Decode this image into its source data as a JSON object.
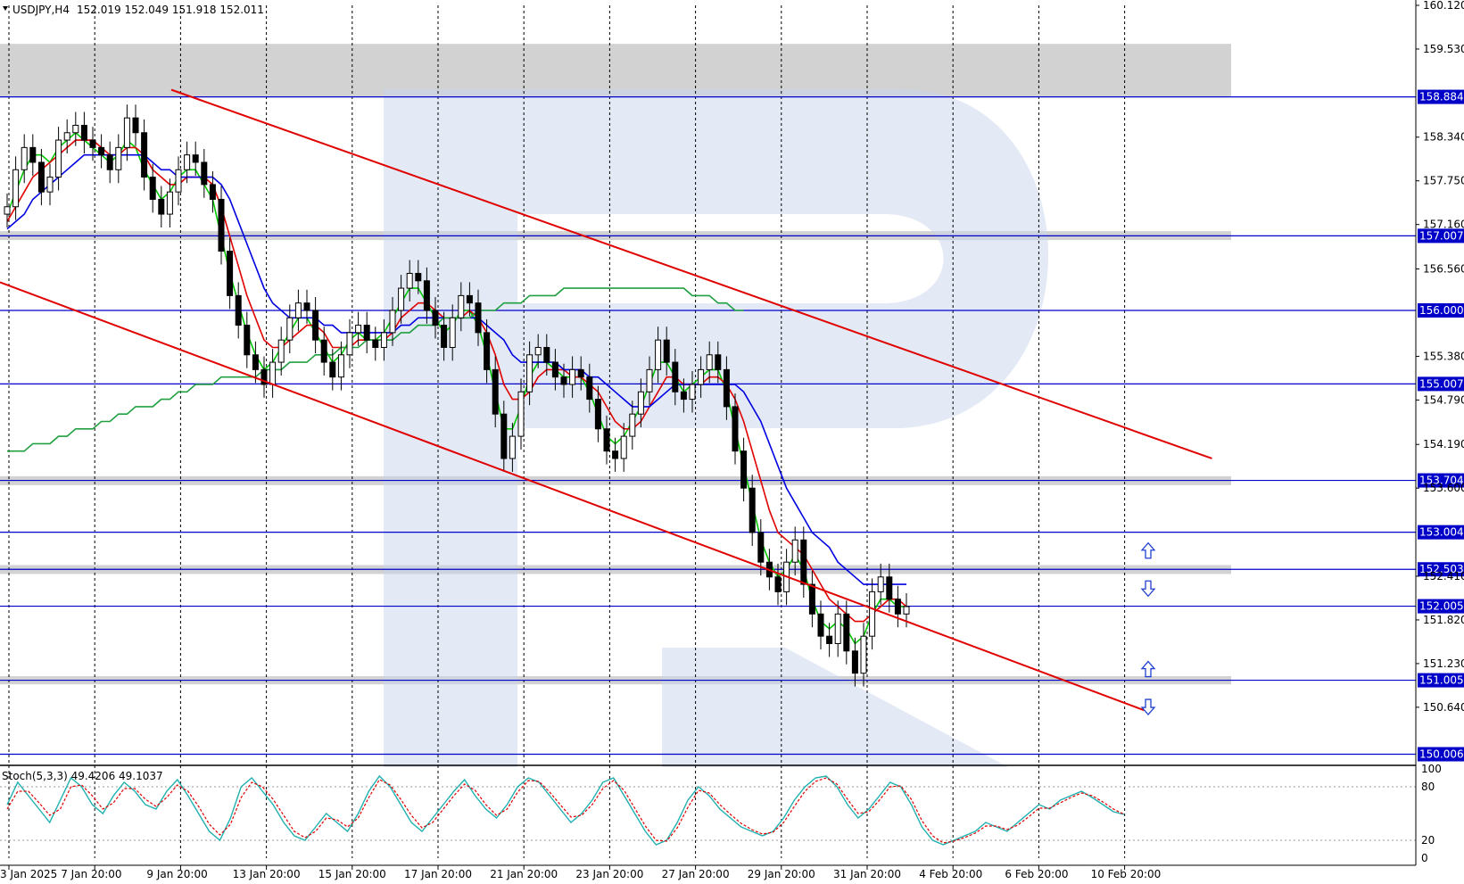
{
  "header": {
    "symbol": "USDJPY,H4",
    "ohlc": "152.019 152.049 151.918 152.011"
  },
  "oscillator": {
    "label": "Stoch(5,3,3) 49.4206 49.1037",
    "levels": [
      "100",
      "80",
      "20",
      "0"
    ]
  },
  "colors": {
    "channel": "#e00000",
    "level_line": "#0000c8",
    "zone_fill": "#d0d0d0",
    "ma_fast": "#00c800",
    "ma_mid": "#e00000",
    "ma_slow": "#0000e0",
    "ma_long": "#20a040",
    "stoch_main": "#20b0b0",
    "stoch_signal": "#e00000",
    "badge": "#0000c8",
    "watermark": "#c8d4ec"
  },
  "chart_data": {
    "type": "candlestick",
    "ylim": [
      150.0,
      160.12
    ],
    "y_ticks": [
      "160.120",
      "159.530",
      "158.340",
      "157.750",
      "157.160",
      "156.560",
      "155.380",
      "154.790",
      "154.190",
      "153.600",
      "152.410",
      "151.820",
      "151.230",
      "150.640"
    ],
    "x_ticks": [
      "3 Jan 2025",
      "7 Jan 20:00",
      "9 Jan 20:00",
      "13 Jan 20:00",
      "15 Jan 20:00",
      "17 Jan 20:00",
      "21 Jan 20:00",
      "23 Jan 20:00",
      "27 Jan 20:00",
      "29 Jan 20:00",
      "31 Jan 20:00",
      "4 Feb 20:00",
      "6 Feb 20:00",
      "10 Feb 20:00"
    ],
    "levels": [
      "158.884",
      "157.007",
      "156.000",
      "155.007",
      "153.704",
      "153.004",
      "152.503",
      "152.005",
      "151.005",
      "150.006"
    ],
    "zones": [
      {
        "from": 158.88,
        "to": 159.6
      },
      {
        "from": 156.95,
        "to": 157.07
      },
      {
        "from": 153.64,
        "to": 153.76
      },
      {
        "from": 152.44,
        "to": 152.56
      },
      {
        "from": 150.95,
        "to": 151.06
      }
    ],
    "channel": {
      "upper": [
        {
          "x": 0.121,
          "y": 158.98
        },
        {
          "x": 0.856,
          "y": 154.0
        }
      ],
      "lower": [
        {
          "x": 0.0,
          "y": 156.38
        },
        {
          "x": 0.808,
          "y": 150.6
        }
      ]
    },
    "close_series": [
      157.4,
      157.9,
      158.2,
      158.0,
      157.6,
      157.8,
      158.3,
      158.4,
      158.5,
      158.3,
      158.2,
      158.1,
      157.9,
      158.2,
      158.6,
      158.4,
      157.8,
      157.5,
      157.3,
      157.6,
      157.9,
      158.1,
      158.0,
      157.7,
      157.5,
      156.8,
      156.2,
      155.8,
      155.4,
      155.2,
      155.0,
      155.3,
      155.6,
      155.9,
      156.1,
      156.0,
      155.6,
      155.3,
      155.1,
      155.4,
      155.7,
      155.8,
      155.6,
      155.5,
      155.7,
      156.0,
      156.3,
      156.5,
      156.4,
      156.0,
      155.8,
      155.5,
      155.9,
      156.2,
      156.1,
      155.7,
      155.2,
      154.6,
      154.0,
      154.3,
      154.9,
      155.4,
      155.5,
      155.3,
      155.1,
      155.0,
      155.2,
      155.1,
      154.8,
      154.4,
      154.1,
      154.0,
      154.3,
      154.6,
      154.9,
      155.2,
      155.6,
      155.3,
      154.9,
      154.8,
      155.0,
      155.2,
      155.4,
      155.2,
      154.7,
      154.1,
      153.6,
      153.0,
      152.6,
      152.4,
      152.2,
      152.6,
      152.9,
      152.3,
      151.9,
      151.6,
      151.5,
      151.9,
      151.4,
      151.1,
      151.6,
      152.2,
      152.4,
      152.1,
      151.9,
      152.0
    ],
    "moving_averages": [
      {
        "values": [
          157.3,
          157.6,
          157.9,
          158.1,
          158.1,
          158.0,
          158.2,
          158.3,
          158.4,
          158.3,
          158.2,
          158.1,
          158.0,
          158.1,
          158.3,
          158.2,
          157.9,
          157.7,
          157.5,
          157.6,
          157.8,
          157.9,
          157.9,
          157.7,
          157.5,
          157.0,
          156.5,
          156.1,
          155.7,
          155.4,
          155.2,
          155.3,
          155.5,
          155.7,
          155.9,
          155.9,
          155.7,
          155.5,
          155.3,
          155.4,
          155.6,
          155.7,
          155.6,
          155.6,
          155.7,
          155.9,
          156.1,
          156.3,
          156.3,
          156.1,
          155.9,
          155.7,
          155.8,
          156.0,
          156.0,
          155.8,
          155.4,
          154.9,
          154.4,
          154.4,
          154.7,
          155.1,
          155.3,
          155.3,
          155.2,
          155.1,
          155.1,
          155.1,
          154.9,
          154.6,
          154.3,
          154.2,
          154.3,
          154.5,
          154.7,
          155.0,
          155.3,
          155.3,
          155.1,
          154.9,
          155.0,
          155.1,
          155.2,
          155.2,
          154.9,
          154.4,
          153.9,
          153.4,
          152.9,
          152.6,
          152.4,
          152.5,
          152.7,
          152.5,
          152.1,
          151.8,
          151.7,
          151.8,
          151.7,
          151.5,
          151.6,
          151.9,
          152.1,
          152.1,
          152.0,
          152.0
        ]
      },
      {
        "values": [
          157.2,
          157.4,
          157.6,
          157.8,
          157.9,
          158.0,
          158.1,
          158.2,
          158.3,
          158.3,
          158.3,
          158.2,
          158.1,
          158.1,
          158.2,
          158.2,
          158.1,
          157.9,
          157.8,
          157.7,
          157.7,
          157.8,
          157.8,
          157.8,
          157.7,
          157.4,
          157.0,
          156.6,
          156.2,
          155.9,
          155.6,
          155.5,
          155.5,
          155.6,
          155.7,
          155.8,
          155.8,
          155.7,
          155.5,
          155.5,
          155.5,
          155.6,
          155.6,
          155.6,
          155.6,
          155.7,
          155.9,
          156.0,
          156.1,
          156.1,
          156.0,
          155.9,
          155.9,
          155.9,
          156.0,
          155.9,
          155.7,
          155.4,
          155.0,
          154.8,
          154.8,
          154.9,
          155.1,
          155.2,
          155.2,
          155.2,
          155.1,
          155.1,
          155.0,
          154.9,
          154.7,
          154.5,
          154.4,
          154.4,
          154.5,
          154.7,
          154.9,
          155.1,
          155.1,
          155.0,
          155.0,
          155.0,
          155.1,
          155.1,
          155.0,
          154.8,
          154.5,
          154.1,
          153.7,
          153.3,
          153.0,
          152.9,
          152.8,
          152.7,
          152.5,
          152.3,
          152.1,
          152.0,
          151.9,
          151.8,
          151.8,
          151.9,
          152.0,
          152.1,
          152.1,
          152.0
        ]
      },
      {
        "values": [
          157.1,
          157.2,
          157.3,
          157.5,
          157.6,
          157.7,
          157.8,
          157.9,
          158.0,
          158.1,
          158.1,
          158.1,
          158.1,
          158.1,
          158.1,
          158.1,
          158.1,
          158.0,
          157.9,
          157.9,
          157.8,
          157.8,
          157.8,
          157.8,
          157.8,
          157.7,
          157.5,
          157.2,
          156.9,
          156.6,
          156.3,
          156.1,
          156.0,
          155.9,
          155.9,
          155.9,
          155.9,
          155.8,
          155.8,
          155.7,
          155.7,
          155.7,
          155.7,
          155.7,
          155.7,
          155.7,
          155.8,
          155.8,
          155.9,
          155.9,
          155.9,
          155.9,
          155.9,
          155.9,
          155.9,
          155.9,
          155.8,
          155.7,
          155.6,
          155.4,
          155.3,
          155.3,
          155.3,
          155.3,
          155.3,
          155.2,
          155.2,
          155.2,
          155.1,
          155.1,
          155.0,
          154.9,
          154.8,
          154.7,
          154.7,
          154.7,
          154.8,
          154.9,
          155.0,
          155.0,
          155.0,
          155.0,
          155.0,
          155.0,
          155.0,
          155.0,
          154.9,
          154.7,
          154.5,
          154.2,
          153.9,
          153.6,
          153.4,
          153.2,
          153.0,
          152.9,
          152.8,
          152.6,
          152.5,
          152.4,
          152.3,
          152.3,
          152.3,
          152.3,
          152.3,
          152.3
        ]
      },
      {
        "values": [
          154.1,
          154.1,
          154.1,
          154.2,
          154.2,
          154.2,
          154.3,
          154.3,
          154.4,
          154.4,
          154.4,
          154.5,
          154.5,
          154.6,
          154.6,
          154.7,
          154.7,
          154.7,
          154.8,
          154.8,
          154.9,
          154.9,
          155.0,
          155.0,
          155.0,
          155.1,
          155.1,
          155.1,
          155.1,
          155.1,
          155.2,
          155.2,
          155.2,
          155.3,
          155.3,
          155.3,
          155.4,
          155.4,
          155.4,
          155.5,
          155.5,
          155.5,
          155.6,
          155.6,
          155.6,
          155.6,
          155.7,
          155.7,
          155.8,
          155.8,
          155.8,
          155.9,
          155.9,
          155.9,
          155.9,
          156.0,
          156.0,
          156.0,
          156.1,
          156.1,
          156.1,
          156.2,
          156.2,
          156.2,
          156.2,
          156.3,
          156.3,
          156.3,
          156.3,
          156.3,
          156.3,
          156.3,
          156.3,
          156.3,
          156.3,
          156.3,
          156.3,
          156.3,
          156.3,
          156.3,
          156.2,
          156.2,
          156.2,
          156.1,
          156.1,
          156.0,
          156.0
        ]
      }
    ],
    "stochastic": {
      "main": [
        60,
        85,
        70,
        55,
        40,
        65,
        90,
        80,
        60,
        50,
        70,
        85,
        75,
        60,
        55,
        75,
        88,
        70,
        50,
        30,
        20,
        45,
        80,
        90,
        75,
        60,
        40,
        25,
        20,
        35,
        50,
        40,
        30,
        50,
        75,
        92,
        80,
        60,
        40,
        30,
        45,
        60,
        75,
        88,
        70,
        55,
        45,
        60,
        80,
        90,
        85,
        70,
        55,
        40,
        50,
        65,
        85,
        90,
        70,
        50,
        30,
        15,
        20,
        40,
        65,
        80,
        70,
        55,
        45,
        35,
        30,
        25,
        30,
        45,
        65,
        80,
        90,
        92,
        80,
        60,
        45,
        55,
        70,
        85,
        80,
        60,
        35,
        20,
        15,
        20,
        25,
        30,
        40,
        35,
        30,
        40,
        50,
        60,
        55,
        65,
        70,
        75,
        68,
        60,
        52,
        49
      ],
      "signal": [
        55,
        75,
        75,
        62,
        48,
        55,
        80,
        82,
        70,
        55,
        62,
        78,
        78,
        66,
        58,
        68,
        82,
        75,
        58,
        38,
        26,
        38,
        68,
        85,
        80,
        66,
        48,
        30,
        23,
        30,
        45,
        43,
        35,
        45,
        68,
        88,
        82,
        66,
        48,
        34,
        40,
        55,
        70,
        83,
        76,
        60,
        48,
        55,
        74,
        87,
        86,
        74,
        60,
        46,
        48,
        60,
        78,
        87,
        76,
        56,
        36,
        20,
        19,
        34,
        57,
        76,
        73,
        60,
        49,
        39,
        32,
        27,
        29,
        40,
        58,
        75,
        86,
        90,
        83,
        66,
        50,
        52,
        65,
        80,
        81,
        66,
        42,
        25,
        17,
        19,
        23,
        28,
        36,
        36,
        32,
        37,
        46,
        56,
        56,
        62,
        68,
        73,
        70,
        63,
        55,
        49
      ]
    }
  }
}
